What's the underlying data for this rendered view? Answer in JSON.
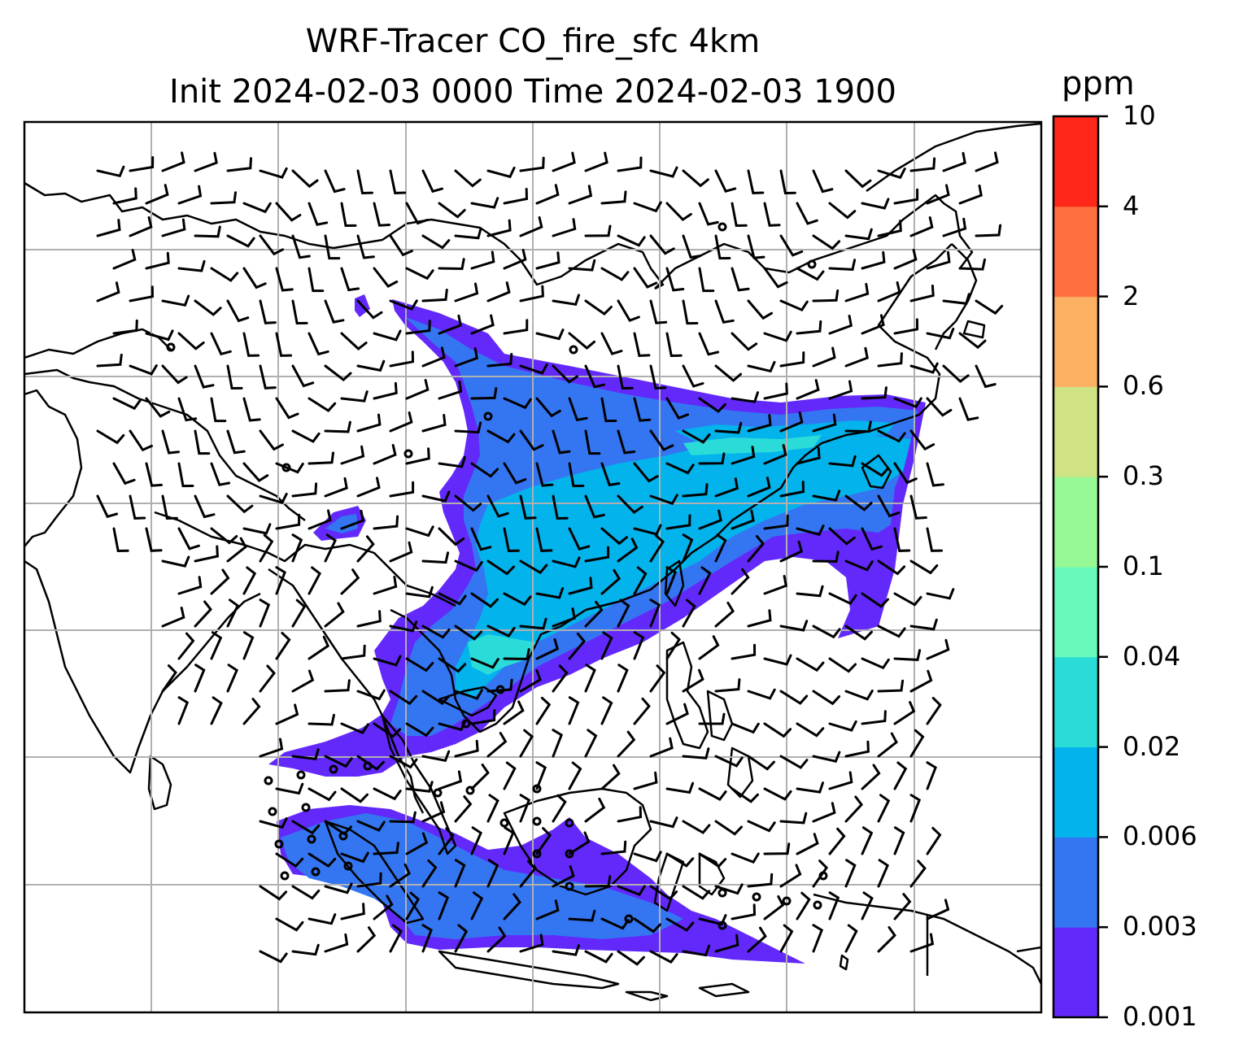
{
  "title": {
    "line1": "WRF-Tracer CO_fire_sfc 4km",
    "line2": "Init 2024-02-03 0000 Time 2024-02-03 1900"
  },
  "colorbar": {
    "label": "ppm",
    "ticks": [
      "0.001",
      "0.003",
      "0.006",
      "0.02",
      "0.04",
      "0.1",
      "0.3",
      "0.6",
      "2",
      "4",
      "10"
    ],
    "colors": [
      "#6329fa",
      "#3476f2",
      "#03b3ec",
      "#2bdbd8",
      "#68faba",
      "#97f995",
      "#cfe385",
      "#fcb062",
      "#ff7041",
      "#ff2719"
    ]
  },
  "map": {
    "shading_colors": {
      "low": "#6329fa",
      "mid": "#3476f2",
      "high": "#03b3ec",
      "peak": "#2bdbd8"
    },
    "coastline_color": "#000000",
    "gridline_color": "#b0b0b0"
  }
}
